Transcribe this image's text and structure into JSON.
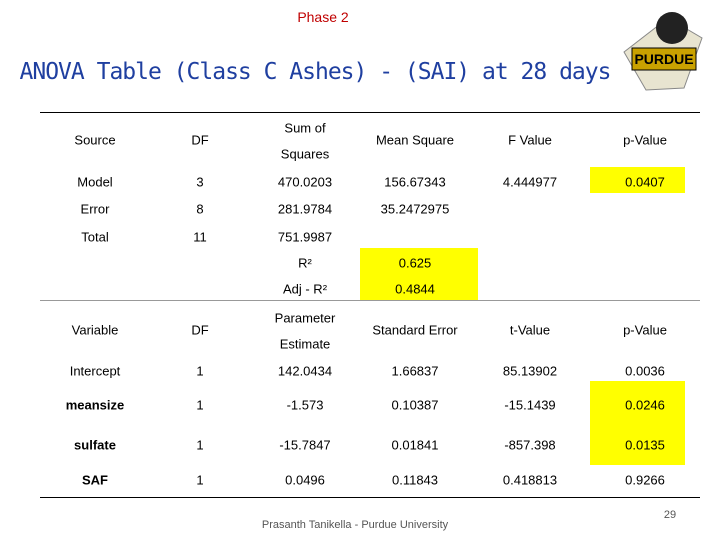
{
  "header": {
    "phase": "Phase 2",
    "title": "ANOVA Table (Class C Ashes) - (SAI) at 28 days",
    "logo_text": "PURDUE"
  },
  "anova": {
    "headers": [
      "Source",
      "DF",
      [
        "Sum of",
        "Squares"
      ],
      "Mean Square",
      "F Value",
      "p-Value"
    ],
    "rows": [
      [
        "Model",
        "3",
        "470.0203",
        "156.67343",
        "4.444977",
        "0.0407"
      ],
      [
        "Error",
        "8",
        "281.9784",
        "35.2472975"
      ],
      [
        "Total",
        "11",
        "751.9987"
      ]
    ],
    "fit": [
      [
        "R²",
        "0.625"
      ],
      [
        "Adj - R²",
        "0.4844"
      ]
    ]
  },
  "parameters": {
    "headers": [
      "Variable",
      "DF",
      [
        "Parameter",
        "Estimate"
      ],
      "Standard Error",
      "t-Value",
      "p-Value"
    ],
    "rows": [
      [
        "Intercept",
        "1",
        "142.0434",
        "1.66837",
        "85.13902",
        "0.0036"
      ],
      [
        "meansize",
        "1",
        "-1.573",
        "0.10387",
        "-15.1439",
        "0.0246"
      ],
      [
        "sulfate",
        "1",
        "-15.7847",
        "0.01841",
        "-857.398",
        "0.0135"
      ],
      [
        "SAF",
        "1",
        "0.0496",
        "0.11843",
        "0.418813",
        "0.9266"
      ]
    ]
  },
  "footer": {
    "author": "Prasanth Tanikella - Purdue University",
    "page": "29"
  }
}
